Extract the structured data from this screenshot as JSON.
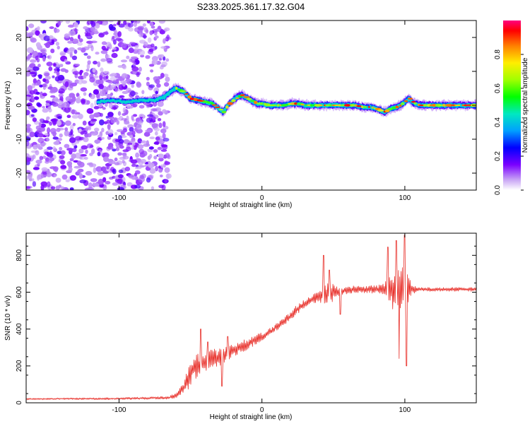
{
  "title": "S233.2025.361.17.32.G04",
  "chart_data": [
    {
      "type": "heatmap",
      "name": "spectrogram",
      "xlabel": "Height of straight line (km)",
      "ylabel": "Frequency (Hz)",
      "xlim": [
        -165,
        150
      ],
      "ylim": [
        -25,
        25
      ],
      "xticks": [
        -100,
        0,
        100
      ],
      "yticks": [
        -20,
        -10,
        0,
        10,
        20
      ],
      "noise_region_x": [
        -165,
        -65
      ],
      "ridge": {
        "x": [
          -115,
          -105,
          -95,
          -85,
          -75,
          -68,
          -64,
          -60,
          -55,
          -50,
          -45,
          -40,
          -35,
          -30,
          -27,
          -24,
          -20,
          -17,
          -14,
          -10,
          -6,
          -3,
          0,
          5,
          10,
          15,
          20,
          25,
          30,
          35,
          40,
          45,
          50,
          55,
          60,
          65,
          70,
          75,
          80,
          83,
          86,
          90,
          94,
          97,
          100,
          103,
          105,
          110,
          115,
          120,
          125,
          130,
          135,
          140,
          145,
          150
        ],
        "y": [
          1,
          1.5,
          1,
          1.5,
          1.5,
          2.5,
          4,
          5,
          4,
          2,
          1.5,
          1,
          0.5,
          -1,
          -2,
          0,
          1.5,
          2.5,
          3,
          2,
          1,
          0.5,
          0.5,
          0,
          0,
          0,
          0.5,
          0.5,
          0,
          0,
          0,
          0,
          0,
          0,
          0,
          0,
          -0.5,
          -0.5,
          -1,
          -1.5,
          -2,
          -1,
          -0.5,
          0,
          1,
          2,
          1,
          0,
          0,
          0,
          0,
          0,
          0,
          0,
          0,
          0
        ]
      },
      "colorbar": {
        "label": "Normalized spectral amplitude",
        "ticks": [
          0.0,
          0.2,
          0.4,
          0.6,
          0.8
        ],
        "tick_labels": [
          "0.0",
          "0.2",
          "0.4",
          "0.6",
          "0.8"
        ],
        "range": [
          0,
          1
        ]
      }
    },
    {
      "type": "line",
      "name": "snr",
      "xlabel": "Height of straight line (km)",
      "ylabel": "SNR (10 * v/v)",
      "xlim": [
        -165,
        150
      ],
      "ylim": [
        0,
        920
      ],
      "xticks": [
        -100,
        0,
        100
      ],
      "yticks": [
        0,
        200,
        400,
        600,
        800
      ],
      "series_color": "#e8302a",
      "envelope": {
        "x": [
          -165,
          -140,
          -110,
          -80,
          -65,
          -60,
          -55,
          -52,
          -50,
          -45,
          -40,
          -35,
          -30,
          -25,
          -20,
          -15,
          -10,
          -5,
          0,
          5,
          10,
          15,
          20,
          25,
          30,
          35,
          40,
          45,
          50,
          55,
          60,
          65,
          70,
          75,
          80,
          85,
          90,
          95,
          100,
          105,
          110,
          120,
          130,
          140,
          150
        ],
        "mean": [
          20,
          22,
          22,
          25,
          28,
          40,
          80,
          130,
          170,
          200,
          220,
          240,
          245,
          265,
          290,
          300,
          320,
          340,
          360,
          380,
          410,
          440,
          470,
          510,
          540,
          560,
          580,
          590,
          600,
          605,
          610,
          615,
          615,
          615,
          615,
          615,
          615,
          615,
          615,
          615,
          615,
          615,
          615,
          615,
          615
        ],
        "amplitude": [
          8,
          8,
          10,
          12,
          15,
          25,
          60,
          120,
          140,
          120,
          100,
          100,
          90,
          80,
          70,
          60,
          55,
          50,
          40,
          40,
          40,
          40,
          45,
          50,
          40,
          40,
          60,
          110,
          90,
          40,
          35,
          40,
          35,
          40,
          40,
          60,
          200,
          230,
          220,
          50,
          20,
          20,
          20,
          20,
          20
        ]
      },
      "spikes": [
        {
          "x": -43,
          "y": 400
        },
        {
          "x": -38,
          "y": 330
        },
        {
          "x": -24,
          "y": 360
        },
        {
          "x": -28,
          "y": 90
        },
        {
          "x": 43,
          "y": 800
        },
        {
          "x": 47,
          "y": 720
        },
        {
          "x": 88,
          "y": 845
        },
        {
          "x": 94,
          "y": 880
        },
        {
          "x": 100,
          "y": 910
        },
        {
          "x": 101,
          "y": 200
        },
        {
          "x": 96,
          "y": 240
        },
        {
          "x": 55,
          "y": 480
        }
      ]
    }
  ]
}
